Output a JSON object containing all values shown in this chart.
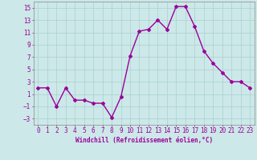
{
  "x": [
    0,
    1,
    2,
    3,
    4,
    5,
    6,
    7,
    8,
    9,
    10,
    11,
    12,
    13,
    14,
    15,
    16,
    17,
    18,
    19,
    20,
    21,
    22,
    23
  ],
  "y": [
    2,
    2,
    -1,
    2,
    0,
    0,
    -0.5,
    -0.5,
    -2.8,
    0.5,
    7.2,
    11.2,
    11.5,
    13,
    11.5,
    15.2,
    15.2,
    12,
    8,
    6,
    4.5,
    3,
    3,
    2
  ],
  "line_color": "#9b009b",
  "marker": "D",
  "markersize": 2.0,
  "linewidth": 1.0,
  "background_color": "#cce8e8",
  "grid_color": "#aad0d0",
  "xlabel": "Windchill (Refroidissement éolien,°C)",
  "xlabel_color": "#9b009b",
  "xlabel_fontsize": 5.5,
  "tick_color": "#9b009b",
  "tick_fontsize": 5.5,
  "ylim": [
    -4,
    16
  ],
  "xlim": [
    -0.5,
    23.5
  ],
  "yticks": [
    -3,
    -1,
    1,
    3,
    5,
    7,
    9,
    11,
    13,
    15
  ],
  "xticks": [
    0,
    1,
    2,
    3,
    4,
    5,
    6,
    7,
    8,
    9,
    10,
    11,
    12,
    13,
    14,
    15,
    16,
    17,
    18,
    19,
    20,
    21,
    22,
    23
  ]
}
